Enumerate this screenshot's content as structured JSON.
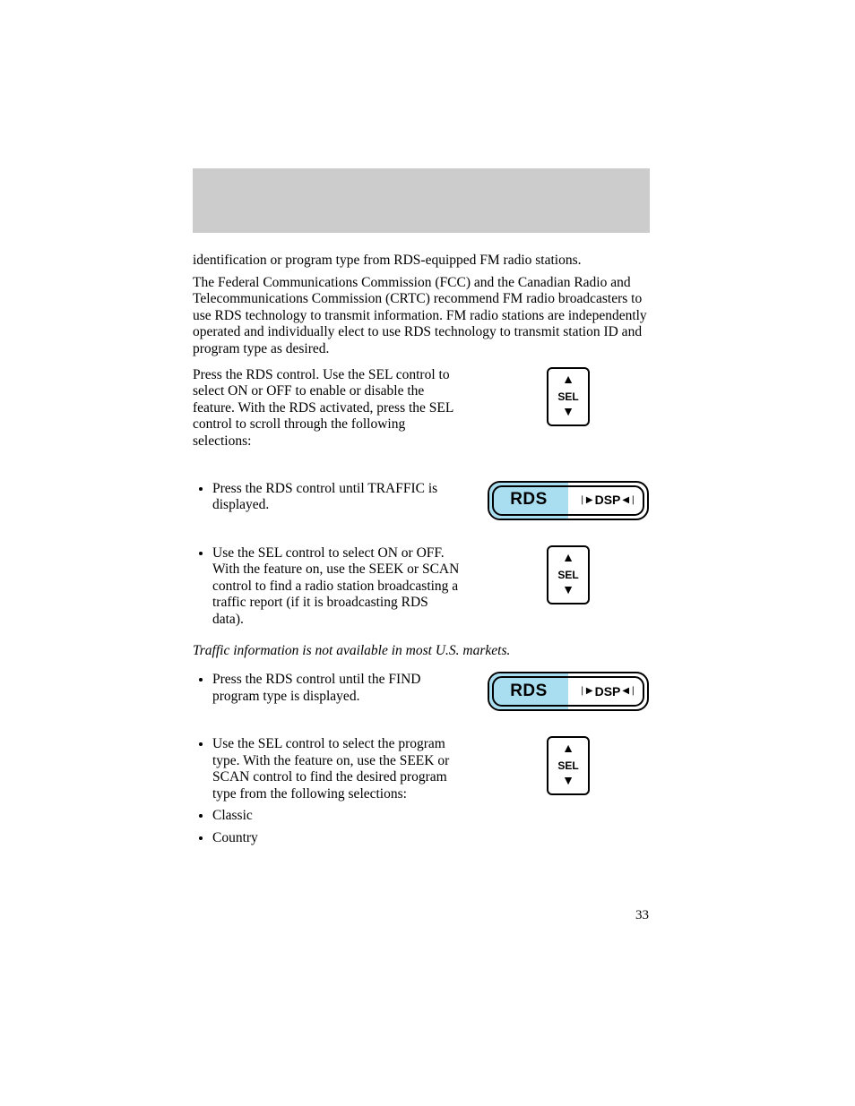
{
  "page_number": "33",
  "colors": {
    "header_band": "#cccccc",
    "rds_left_bg": "#a9def0",
    "text": "#000000",
    "background": "#ffffff"
  },
  "intro": {
    "line1": "identification or program type from RDS-equipped FM radio stations.",
    "para2": "The Federal Communications Commission (FCC) and the Canadian Radio and Telecommunications Commission (CRTC) recommend FM radio broadcasters to use RDS technology to transmit information. FM radio stations are independently operated and individually elect to use RDS technology to transmit station ID and program type as desired."
  },
  "block1": {
    "text": "Press the RDS control. Use the SEL control to select ON or OFF to enable or disable the feature. With the RDS activated, press the SEL control to scroll through the following selections:"
  },
  "sel": {
    "label": "SEL",
    "up_glyph": "▲",
    "down_glyph": "▼"
  },
  "rds": {
    "label": "RDS",
    "dsp_label": "DSP",
    "dsp_left_glyph": "❘▶",
    "dsp_right_glyph": "◀❘"
  },
  "traffic": {
    "bullet1": "Press the RDS control until TRAFFIC is displayed.",
    "bullet2": "Use the SEL control to select ON or OFF. With the feature on, use the SEEK or SCAN control to find a radio station broadcasting a traffic report (if it is broadcasting RDS data).",
    "note": "Traffic information is not available in most U.S. markets."
  },
  "find": {
    "bullet1": "Press the RDS control until the FIND program type is displayed.",
    "bullet2": "Use the SEL control to select the program type. With the feature on, use the SEEK or SCAN control to find the desired program type from the following selections:",
    "bullet3": "Classic",
    "bullet4": "Country"
  }
}
